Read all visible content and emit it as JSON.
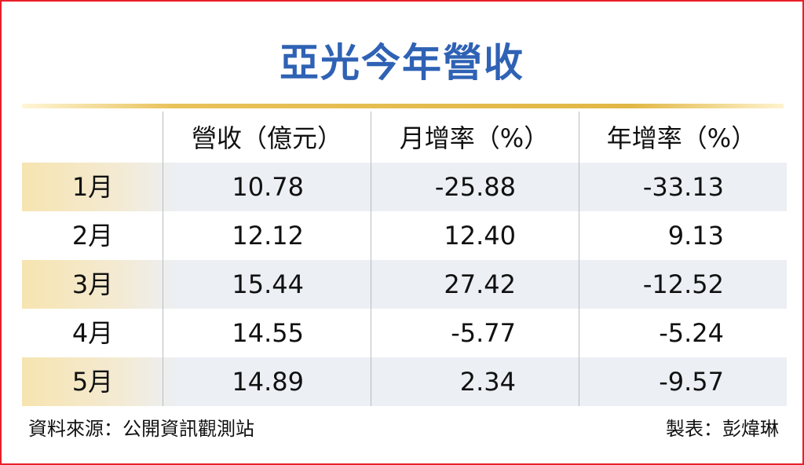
{
  "header": {
    "title": "亞光今年營收"
  },
  "table": {
    "columns": [
      "營收（億元）",
      "月增率（%）",
      "年增率（%）"
    ],
    "rows": [
      [
        "1月",
        "10.78",
        "-25.88",
        "-33.13"
      ],
      [
        "2月",
        "12.12",
        "12.40",
        "9.13"
      ],
      [
        "3月",
        "15.44",
        "27.42",
        "-12.52"
      ],
      [
        "4月",
        "14.55",
        "-5.77",
        "-5.24"
      ],
      [
        "5月",
        "14.89",
        "2.34",
        "-9.57"
      ]
    ]
  },
  "footer": {
    "source": "資料來源：公開資訊觀測站",
    "credit": "製表：彭煒琳"
  }
}
